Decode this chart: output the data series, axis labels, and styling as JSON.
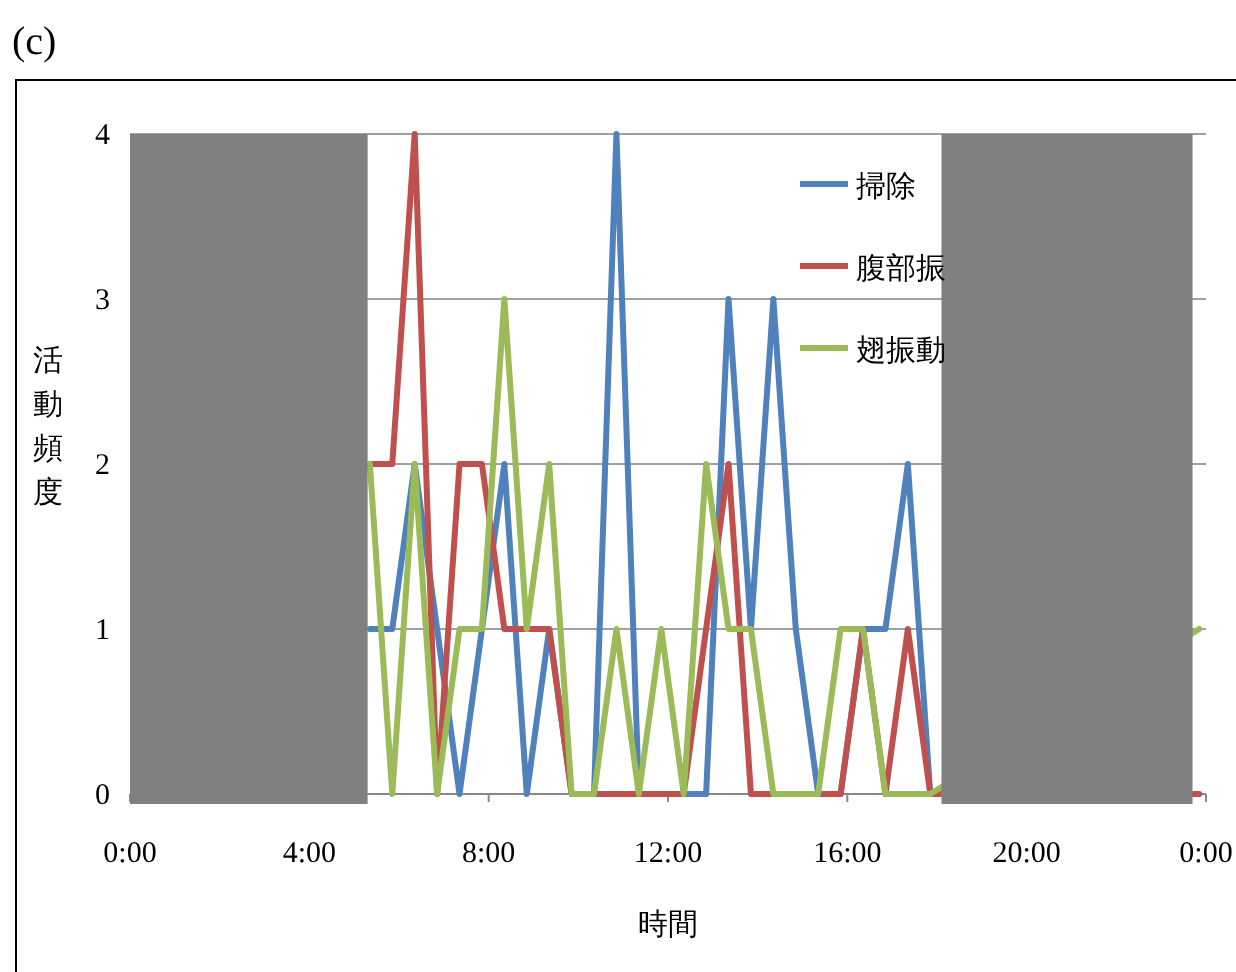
{
  "chart_data": {
    "type": "line",
    "title": "(c)",
    "xlabel": "時間",
    "ylabel": "活動頻度",
    "x": [
      5.35,
      5.85,
      6.35,
      6.85,
      7.35,
      7.85,
      8.35,
      8.85,
      9.35,
      9.85,
      10.35,
      10.85,
      11.35,
      11.85,
      12.35,
      12.85,
      13.35,
      13.85,
      14.35,
      14.85,
      15.35,
      15.85,
      16.35,
      16.85,
      17.35,
      17.85,
      23.85
    ],
    "series": [
      {
        "name": "掃除",
        "color": "#4f81bd",
        "values": [
          1,
          1,
          2,
          1,
          0,
          1,
          2,
          0,
          1,
          0,
          0,
          4,
          0,
          0,
          0,
          0,
          3,
          1,
          3,
          1,
          0,
          0,
          1,
          1,
          2,
          0,
          null
        ]
      },
      {
        "name": "腹部振",
        "color": "#c0504d",
        "values": [
          2,
          2,
          4,
          0,
          2,
          2,
          1,
          1,
          1,
          0,
          0,
          0,
          0,
          0,
          0,
          1,
          2,
          0,
          0,
          0,
          0,
          0,
          1,
          0,
          1,
          0,
          0
        ]
      },
      {
        "name": "翅振動",
        "color": "#9bbb59",
        "values": [
          2,
          0,
          2,
          0,
          1,
          1,
          3,
          1,
          2,
          0,
          0,
          1,
          0,
          1,
          0,
          2,
          1,
          1,
          0,
          0,
          0,
          1,
          1,
          0,
          0,
          0,
          1
        ]
      }
    ],
    "xlim": [
      0,
      24
    ],
    "xticks": [
      {
        "value": 0,
        "label": "0:00"
      },
      {
        "value": 4,
        "label": "4:00"
      },
      {
        "value": 8,
        "label": "8:00"
      },
      {
        "value": 12,
        "label": "12:00"
      },
      {
        "value": 16,
        "label": "16:00"
      },
      {
        "value": 20,
        "label": "20:00"
      },
      {
        "value": 24,
        "label": "0:00"
      }
    ],
    "ylim": [
      0,
      4
    ],
    "yticks": [
      0,
      1,
      2,
      3,
      4
    ],
    "grid": "y",
    "legend": "top right",
    "bands": [
      {
        "axis": "x",
        "from": 0,
        "to": 5.3,
        "color": "#808080"
      },
      {
        "axis": "x",
        "from": 18.1,
        "to": 23.7,
        "color": "#808080"
      }
    ]
  }
}
